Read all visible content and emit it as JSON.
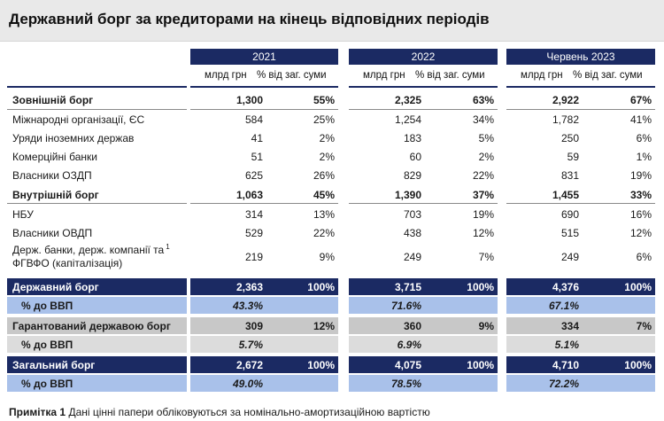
{
  "title": "Державний борг за кредиторами на кінець відповідних періодів",
  "periods": [
    "2021",
    "2022",
    "Червень 2023"
  ],
  "col_units": "млрд грн",
  "col_share": "% від заг. суми",
  "rows": [
    {
      "label": "Зовнішній борг",
      "values": [
        "1,300",
        "55%",
        "2,325",
        "63%",
        "2,922",
        "67%"
      ]
    },
    {
      "label": "Міжнародні організації, ЄС",
      "values": [
        "584",
        "25%",
        "1,254",
        "34%",
        "1,782",
        "41%"
      ]
    },
    {
      "label": "Уряди іноземних держав",
      "values": [
        "41",
        "2%",
        "183",
        "5%",
        "250",
        "6%"
      ]
    },
    {
      "label": "Комерційні банки",
      "values": [
        "51",
        "2%",
        "60",
        "2%",
        "59",
        "1%"
      ]
    },
    {
      "label": "Власники ОЗДП",
      "values": [
        "625",
        "26%",
        "829",
        "22%",
        "831",
        "19%"
      ]
    },
    {
      "label": "Внутрішній борг",
      "values": [
        "1,063",
        "45%",
        "1,390",
        "37%",
        "1,455",
        "33%"
      ]
    },
    {
      "label": "НБУ",
      "values": [
        "314",
        "13%",
        "703",
        "19%",
        "690",
        "16%"
      ]
    },
    {
      "label": "Власники ОВДП",
      "values": [
        "529",
        "22%",
        "438",
        "12%",
        "515",
        "12%"
      ]
    },
    {
      "label_line1": "Держ. банки, держ. компанії та",
      "label_sup": "1",
      "label_line2": "ФГВФО (капіталізація)",
      "values": [
        "219",
        "9%",
        "249",
        "7%",
        "249",
        "6%"
      ]
    }
  ],
  "summary": [
    {
      "label": "Державний борг",
      "values": [
        "2,363",
        "100%",
        "3,715",
        "100%",
        "4,376",
        "100%"
      ]
    },
    {
      "label": "% до ВВП",
      "values": [
        "43.3%",
        "71.6%",
        "67.1%"
      ]
    },
    {
      "label": "Гарантований державою борг",
      "values": [
        "309",
        "12%",
        "360",
        "9%",
        "334",
        "7%"
      ]
    },
    {
      "label": "% до ВВП",
      "values": [
        "5.7%",
        "6.9%",
        "5.1%"
      ]
    },
    {
      "label": "Загальний борг",
      "values": [
        "2,672",
        "100%",
        "4,075",
        "100%",
        "4,710",
        "100%"
      ]
    },
    {
      "label": "% до ВВП",
      "values": [
        "49.0%",
        "78.5%",
        "72.2%"
      ]
    }
  ],
  "note": {
    "label": "Примітка 1",
    "text": " Дані цінні папери обліковуються за номінально-амортизаційною вартістю"
  }
}
